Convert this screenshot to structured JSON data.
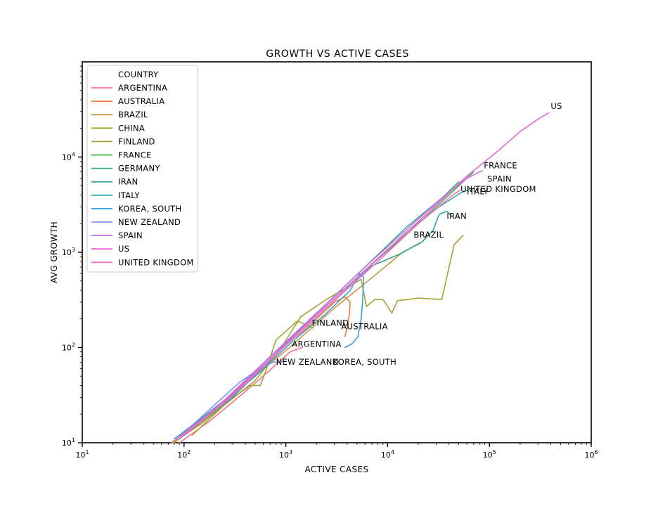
{
  "chart_data": {
    "type": "line",
    "title": "GROWTH VS ACTIVE CASES",
    "xlabel": "ACTIVE CASES",
    "ylabel": "AVG GROWTH",
    "x_scale": "log",
    "y_scale": "log",
    "xlim": [
      10,
      1000000
    ],
    "ylim": [
      10,
      100000
    ],
    "x_ticks": [
      {
        "value": 10,
        "base": "10",
        "exp": "1"
      },
      {
        "value": 100,
        "base": "10",
        "exp": "2"
      },
      {
        "value": 1000,
        "base": "10",
        "exp": "3"
      },
      {
        "value": 10000,
        "base": "10",
        "exp": "4"
      },
      {
        "value": 100000,
        "base": "10",
        "exp": "5"
      },
      {
        "value": 1000000,
        "base": "10",
        "exp": "6"
      }
    ],
    "y_ticks": [
      {
        "value": 10,
        "base": "10",
        "exp": "1"
      },
      {
        "value": 100,
        "base": "10",
        "exp": "2"
      },
      {
        "value": 1000,
        "base": "10",
        "exp": "3"
      },
      {
        "value": 10000,
        "base": "10",
        "exp": "4"
      }
    ],
    "grid": false,
    "legend": {
      "title": "COUNTRY",
      "placement": "top-left"
    },
    "series": [
      {
        "name": "ARGENTINA",
        "color": "#f2738f",
        "label": "ARGENTINA",
        "points": [
          [
            90,
            10
          ],
          [
            180,
            17
          ],
          [
            380,
            33
          ],
          [
            700,
            58
          ],
          [
            1100,
            90
          ],
          [
            1450,
            100
          ]
        ]
      },
      {
        "name": "AUSTRALIA",
        "color": "#ef7f3a",
        "label": "AUSTRALIA",
        "points": [
          [
            90,
            11
          ],
          [
            200,
            21
          ],
          [
            450,
            48
          ],
          [
            900,
            90
          ],
          [
            1700,
            170
          ],
          [
            3000,
            300
          ],
          [
            3800,
            340
          ],
          [
            4300,
            300
          ],
          [
            4200,
            220
          ],
          [
            4000,
            160
          ],
          [
            3800,
            130
          ]
        ]
      },
      {
        "name": "BRAZIL",
        "color": "#c49a3a",
        "label": "BRAZIL",
        "points": [
          [
            80,
            10
          ],
          [
            200,
            22
          ],
          [
            500,
            50
          ],
          [
            1200,
            110
          ],
          [
            3000,
            260
          ],
          [
            7000,
            540
          ],
          [
            14000,
            1000
          ],
          [
            21000,
            1250
          ]
        ]
      },
      {
        "name": "CHINA",
        "color": "#a6a230",
        "label": "",
        "points": [
          [
            120,
            12
          ],
          [
            250,
            25
          ],
          [
            500,
            45
          ],
          [
            900,
            100
          ],
          [
            1400,
            210
          ],
          [
            2500,
            320
          ],
          [
            5500,
            520
          ],
          [
            6200,
            270
          ],
          [
            7500,
            320
          ],
          [
            9000,
            320
          ],
          [
            11000,
            230
          ],
          [
            12500,
            310
          ],
          [
            20000,
            330
          ],
          [
            34000,
            320
          ],
          [
            45000,
            1200
          ],
          [
            55000,
            1500
          ]
        ]
      },
      {
        "name": "FINLAND",
        "color": "#9da532",
        "label": "FINLAND",
        "points": [
          [
            78,
            10
          ],
          [
            150,
            16
          ],
          [
            280,
            28
          ],
          [
            450,
            40
          ],
          [
            560,
            40
          ],
          [
            630,
            55
          ],
          [
            800,
            120
          ],
          [
            1300,
            190
          ],
          [
            1850,
            160
          ]
        ]
      },
      {
        "name": "FRANCE",
        "color": "#40b247",
        "label": "FRANCE",
        "points": [
          [
            95,
            12
          ],
          [
            250,
            28
          ],
          [
            700,
            80
          ],
          [
            2000,
            220
          ],
          [
            6000,
            650
          ],
          [
            18000,
            1800
          ],
          [
            45000,
            4500
          ],
          [
            70000,
            7000
          ]
        ]
      },
      {
        "name": "GERMANY",
        "color": "#39aa8c",
        "label": "",
        "points": [
          [
            90,
            12
          ],
          [
            250,
            28
          ],
          [
            700,
            80
          ],
          [
            2000,
            230
          ],
          [
            6000,
            700
          ],
          [
            15000,
            1800
          ],
          [
            35000,
            3800
          ],
          [
            50000,
            5500
          ]
        ]
      },
      {
        "name": "IRAN",
        "color": "#33a39c",
        "label": "IRAN",
        "points": [
          [
            110,
            13
          ],
          [
            300,
            30
          ],
          [
            800,
            85
          ],
          [
            2500,
            260
          ],
          [
            7000,
            720
          ],
          [
            13000,
            950
          ],
          [
            22000,
            1300
          ],
          [
            28000,
            1700
          ],
          [
            32000,
            2500
          ],
          [
            38000,
            2700
          ],
          [
            42000,
            2450
          ]
        ]
      },
      {
        "name": "ITALY",
        "color": "#36a7b3",
        "label": "ITALY",
        "points": [
          [
            90,
            11
          ],
          [
            250,
            27
          ],
          [
            700,
            80
          ],
          [
            2000,
            220
          ],
          [
            6000,
            650
          ],
          [
            15000,
            1600
          ],
          [
            32000,
            3000
          ],
          [
            52000,
            4200
          ],
          [
            62000,
            4500
          ]
        ]
      },
      {
        "name": "KOREA, SOUTH",
        "color": "#3ba0d6",
        "label": "KOREA, SOUTH",
        "points": [
          [
            80,
            11
          ],
          [
            200,
            22
          ],
          [
            500,
            50
          ],
          [
            1200,
            120
          ],
          [
            2400,
            220
          ],
          [
            4300,
            400
          ],
          [
            5300,
            600
          ],
          [
            5800,
            550
          ],
          [
            5700,
            330
          ],
          [
            5500,
            200
          ],
          [
            5100,
            130
          ],
          [
            4500,
            110
          ],
          [
            3800,
            100
          ]
        ]
      },
      {
        "name": "NEW ZEALAND",
        "color": "#8294ee",
        "label": "NEW ZEALAND",
        "points": [
          [
            110,
            14
          ],
          [
            200,
            25
          ],
          [
            350,
            43
          ],
          [
            550,
            60
          ],
          [
            750,
            70
          ],
          [
            1000,
            72
          ]
        ]
      },
      {
        "name": "SPAIN",
        "color": "#c170ea",
        "label": "SPAIN",
        "points": [
          [
            90,
            11
          ],
          [
            250,
            28
          ],
          [
            700,
            80
          ],
          [
            2000,
            230
          ],
          [
            6000,
            700
          ],
          [
            15000,
            1700
          ],
          [
            35000,
            3800
          ],
          [
            60000,
            6000
          ],
          [
            85000,
            7200
          ]
        ]
      },
      {
        "name": "US",
        "color": "#ec62d1",
        "label": "US",
        "points": [
          [
            75,
            10
          ],
          [
            200,
            22
          ],
          [
            600,
            65
          ],
          [
            2000,
            220
          ],
          [
            7000,
            750
          ],
          [
            20000,
            2100
          ],
          [
            60000,
            6300
          ],
          [
            120000,
            11500
          ],
          [
            200000,
            18500
          ],
          [
            300000,
            25000
          ],
          [
            380000,
            29000
          ]
        ]
      },
      {
        "name": "UNITED KINGDOM",
        "color": "#f06fc0",
        "label": "UNITED KINGDOM",
        "points": [
          [
            100,
            12
          ],
          [
            300,
            31
          ],
          [
            800,
            85
          ],
          [
            2500,
            260
          ],
          [
            8000,
            800
          ],
          [
            20000,
            2000
          ],
          [
            45000,
            4100
          ],
          [
            52000,
            4500
          ]
        ]
      }
    ],
    "annotations": [
      {
        "text": "US",
        "x": 400000,
        "y": 32000
      },
      {
        "text": "FRANCE",
        "x": 88000,
        "y": 7600
      },
      {
        "text": "SPAIN",
        "x": 95000,
        "y": 5500
      },
      {
        "text": "ITALY",
        "x": 60000,
        "y": 4050
      },
      {
        "text": "UNITED KINGDOM",
        "x": 52000,
        "y": 4300
      },
      {
        "text": "IRAN",
        "x": 38000,
        "y": 2250
      },
      {
        "text": "BRAZIL",
        "x": 18000,
        "y": 1430
      },
      {
        "text": "FINLAND",
        "x": 1800,
        "y": 170
      },
      {
        "text": "AUSTRALIA",
        "x": 3500,
        "y": 155
      },
      {
        "text": "ARGENTINA",
        "x": 1150,
        "y": 102
      },
      {
        "text": "NEW ZEALAND",
        "x": 800,
        "y": 66
      },
      {
        "text": "KOREA, SOUTH",
        "x": 2900,
        "y": 66
      }
    ]
  }
}
